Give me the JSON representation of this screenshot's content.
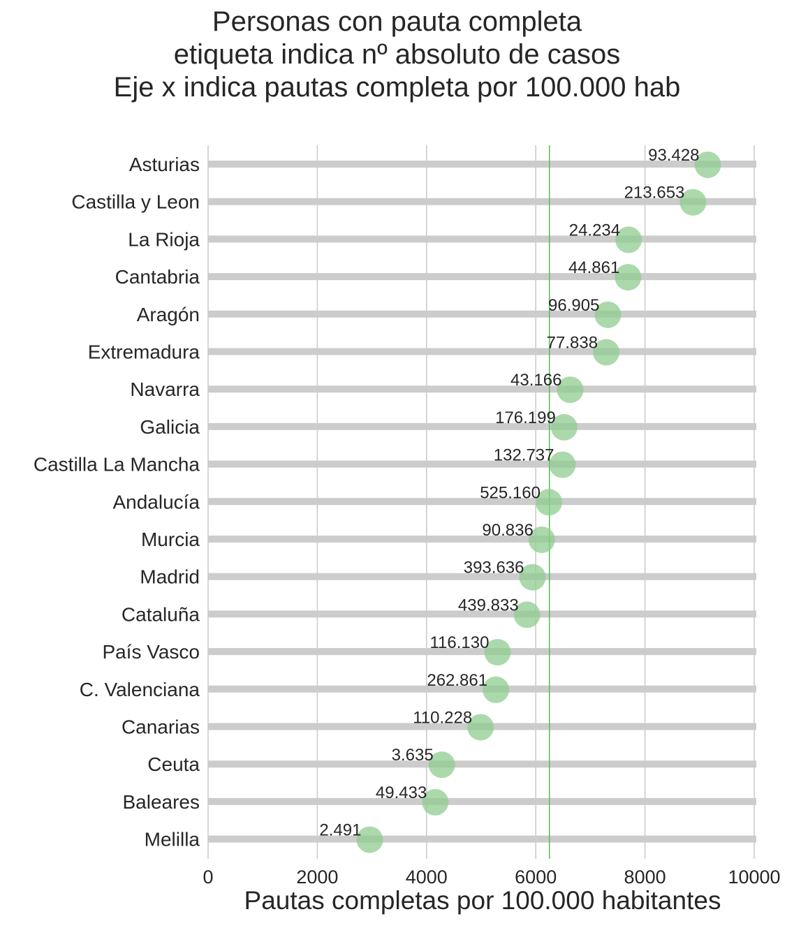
{
  "chart_data": {
    "type": "scatter",
    "title_lines": [
      "Personas con pauta completa",
      "etiqueta indica nº absoluto de casos",
      "Eje x indica pautas completa por 100.000 hab"
    ],
    "xlabel": "Pautas completas por 100.000 habitantes",
    "ylabel": "",
    "xlim": [
      0,
      10000
    ],
    "xticks": [
      0,
      2000,
      4000,
      6000,
      8000,
      10000
    ],
    "xtick_labels": [
      "0",
      "2000",
      "4000",
      "6000",
      "8000",
      "10000"
    ],
    "grid": true,
    "reference_line": {
      "x": 6250,
      "color": "#5cbf5c"
    },
    "marker_color": "#8fcc8f",
    "bar_color": "#cccccc",
    "regions": [
      {
        "name": "Asturias",
        "x": 9150,
        "label": "93.428"
      },
      {
        "name": "Castilla y Leon",
        "x": 8880,
        "label": "213.653"
      },
      {
        "name": "La Rioja",
        "x": 7700,
        "label": "24.234"
      },
      {
        "name": "Cantabria",
        "x": 7690,
        "label": "44.861"
      },
      {
        "name": "Aragón",
        "x": 7320,
        "label": "96.905"
      },
      {
        "name": "Extremadura",
        "x": 7290,
        "label": "77.838"
      },
      {
        "name": "Navarra",
        "x": 6630,
        "label": "43.166"
      },
      {
        "name": "Galicia",
        "x": 6520,
        "label": "176.199"
      },
      {
        "name": "Castilla La Mancha",
        "x": 6490,
        "label": "132.737"
      },
      {
        "name": "Andalucía",
        "x": 6240,
        "label": "525.160"
      },
      {
        "name": "Murcia",
        "x": 6110,
        "label": "90.836"
      },
      {
        "name": "Madrid",
        "x": 5940,
        "label": "393.636"
      },
      {
        "name": "Cataluña",
        "x": 5840,
        "label": "439.833"
      },
      {
        "name": "País Vasco",
        "x": 5300,
        "label": "116.130"
      },
      {
        "name": "C. Valenciana",
        "x": 5270,
        "label": "262.861"
      },
      {
        "name": "Canarias",
        "x": 4990,
        "label": "110.228"
      },
      {
        "name": "Ceuta",
        "x": 4280,
        "label": "3.635"
      },
      {
        "name": "Baleares",
        "x": 4160,
        "label": "49.433"
      },
      {
        "name": "Melilla",
        "x": 2960,
        "label": "2.491"
      }
    ]
  }
}
